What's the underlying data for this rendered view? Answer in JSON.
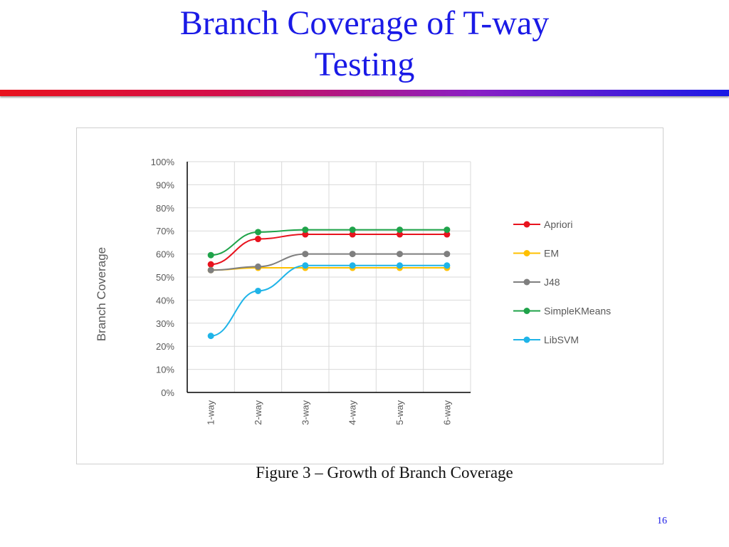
{
  "slide": {
    "title_line1": "Branch Coverage of T-way",
    "title_line2": "Testing",
    "caption": "Figure 3 – Growth of Branch Coverage",
    "page_number": "16"
  },
  "chart_data": {
    "type": "line",
    "title": "",
    "xlabel": "",
    "ylabel": "Branch Coverage",
    "categories": [
      "1-way",
      "2-way",
      "3-way",
      "4-way",
      "5-way",
      "6-way"
    ],
    "ylim": [
      0,
      100
    ],
    "yticks": [
      "0%",
      "10%",
      "20%",
      "30%",
      "40%",
      "50%",
      "60%",
      "70%",
      "80%",
      "90%",
      "100%"
    ],
    "grid": true,
    "legend_position": "right",
    "series": [
      {
        "name": "Apriori",
        "color": "#e8131e",
        "values": [
          55.5,
          66.5,
          68.5,
          68.5,
          68.5,
          68.5
        ]
      },
      {
        "name": "EM",
        "color": "#ffc000",
        "values": [
          53,
          54,
          54,
          54,
          54,
          54
        ]
      },
      {
        "name": "J48",
        "color": "#7f7f7f",
        "values": [
          53,
          54.5,
          60,
          60,
          60,
          60
        ]
      },
      {
        "name": "SimpleKMeans",
        "color": "#1fa34a",
        "values": [
          59.5,
          69.5,
          70.5,
          70.5,
          70.5,
          70.5
        ]
      },
      {
        "name": "LibSVM",
        "color": "#1fb4e8",
        "values": [
          24.5,
          44,
          55,
          55,
          55,
          55
        ]
      }
    ]
  }
}
